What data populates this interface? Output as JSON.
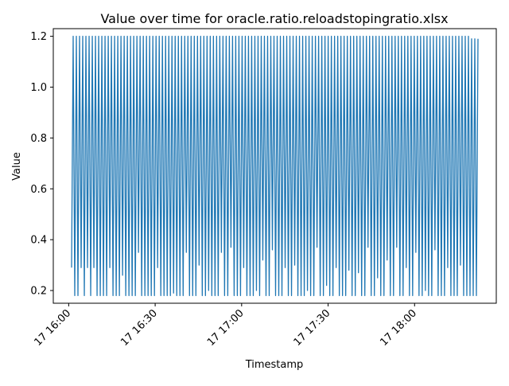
{
  "chart_data": {
    "type": "line",
    "title": "Value over time for oracle.ratio.reloadstopingratio.xlsx",
    "xlabel": "Timestamp",
    "ylabel": "Value",
    "x_range": [
      "2024-01-17T16:01",
      "2024-01-17T18:22"
    ],
    "ylim": [
      0.15,
      1.23
    ],
    "y_ticks": [
      0.2,
      0.4,
      0.6,
      0.8,
      1.0,
      1.2
    ],
    "y_tick_labels": [
      "0.2",
      "0.4",
      "0.6",
      "0.8",
      "1.0",
      "1.2"
    ],
    "x_ticks": [
      "2024-01-17T16:00",
      "2024-01-17T16:30",
      "2024-01-17T17:00",
      "2024-01-17T17:30",
      "2024-01-17T18:00"
    ],
    "x_tick_labels": [
      "17 16:00",
      "17 16:30",
      "17 17:00",
      "17 17:30",
      "17 18:00"
    ],
    "grid": false,
    "legend": "none",
    "series": [
      {
        "color": "#1f77b4",
        "values": [
          0.29,
          1.2,
          0.18,
          1.2,
          0.18,
          1.2,
          0.29,
          1.2,
          0.18,
          1.2,
          0.29,
          1.2,
          0.18,
          1.2,
          0.29,
          1.2,
          0.18,
          1.2,
          0.18,
          1.2,
          0.18,
          1.2,
          0.18,
          1.2,
          0.29,
          1.2,
          0.18,
          1.2,
          0.18,
          1.2,
          0.18,
          1.2,
          0.26,
          1.2,
          0.18,
          1.2,
          0.18,
          1.2,
          0.18,
          1.2,
          0.18,
          1.2,
          0.35,
          1.2,
          0.18,
          1.2,
          0.18,
          1.2,
          0.18,
          1.2,
          0.18,
          1.2,
          0.18,
          1.2,
          0.29,
          1.2,
          0.18,
          1.2,
          0.18,
          1.2,
          0.18,
          1.2,
          0.18,
          1.2,
          0.19,
          1.2,
          0.18,
          1.2,
          0.18,
          1.2,
          0.18,
          1.2,
          0.35,
          1.2,
          0.18,
          1.2,
          0.18,
          1.2,
          0.18,
          1.2,
          0.3,
          1.2,
          0.18,
          1.2,
          0.18,
          1.2,
          0.2,
          1.2,
          0.18,
          1.2,
          0.18,
          1.2,
          0.18,
          1.2,
          0.35,
          1.2,
          0.18,
          1.2,
          0.18,
          1.2,
          0.37,
          1.2,
          0.18,
          1.2,
          0.18,
          1.2,
          0.18,
          1.2,
          0.29,
          1.2,
          0.18,
          1.2,
          0.18,
          1.2,
          0.18,
          1.2,
          0.2,
          1.2,
          0.18,
          1.2,
          0.32,
          1.2,
          0.18,
          1.2,
          0.18,
          1.2,
          0.36,
          1.2,
          0.18,
          1.2,
          0.18,
          1.2,
          0.18,
          1.2,
          0.29,
          1.2,
          0.18,
          1.2,
          0.18,
          1.2,
          0.3,
          1.2,
          0.18,
          1.2,
          0.18,
          1.2,
          0.18,
          1.2,
          0.2,
          1.2,
          0.18,
          1.2,
          0.18,
          1.2,
          0.37,
          1.2,
          0.18,
          1.2,
          0.18,
          1.2,
          0.22,
          1.2,
          0.18,
          1.2,
          0.18,
          1.2,
          0.29,
          1.2,
          0.18,
          1.2,
          0.18,
          1.2,
          0.18,
          1.2,
          0.28,
          1.2,
          0.18,
          1.2,
          0.18,
          1.2,
          0.27,
          1.2,
          0.18,
          1.2,
          0.18,
          1.2,
          0.37,
          1.2,
          0.18,
          1.2,
          0.18,
          1.2,
          0.25,
          1.2,
          0.18,
          1.2,
          0.18,
          1.2,
          0.32,
          1.2,
          0.18,
          1.2,
          0.18,
          1.2,
          0.37,
          1.2,
          0.18,
          1.2,
          0.18,
          1.2,
          0.29,
          1.2,
          0.18,
          1.2,
          0.18,
          1.2,
          0.35,
          1.2,
          0.18,
          1.2,
          0.18,
          1.2,
          0.2,
          1.2,
          0.18,
          1.2,
          0.18,
          1.2,
          0.36,
          1.2,
          0.18,
          1.2,
          0.18,
          1.2,
          0.18,
          1.2,
          0.29,
          1.2,
          0.18,
          1.2,
          0.18,
          1.2,
          0.18,
          1.2,
          0.3,
          1.2,
          0.18,
          1.2,
          0.18,
          1.2,
          0.18,
          1.19,
          0.18,
          1.19,
          0.18,
          1.19
        ]
      }
    ]
  }
}
